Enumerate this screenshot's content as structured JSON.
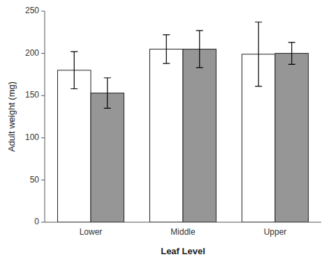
{
  "chart_data": {
    "type": "bar",
    "categories": [
      "Lower",
      "Middle",
      "Upper"
    ],
    "series": [
      {
        "color": "#ffffff",
        "values": [
          180,
          205,
          199
        ],
        "errors": [
          22,
          17,
          38
        ]
      },
      {
        "color": "#969696",
        "values": [
          153,
          205,
          200
        ],
        "errors": [
          18,
          22,
          13
        ]
      }
    ],
    "xlabel": "Leaf Level",
    "ylabel": "Adult weight (mg)",
    "ylim": [
      0,
      250
    ],
    "yticks": [
      0,
      50,
      100,
      150,
      200,
      250
    ],
    "grid": false
  }
}
